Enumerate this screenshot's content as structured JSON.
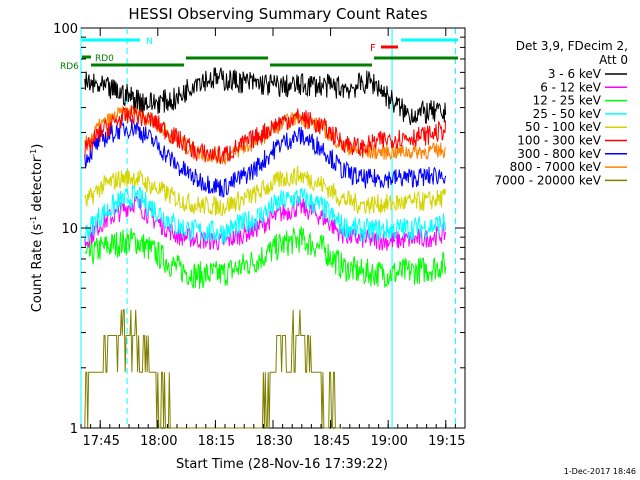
{
  "chart_data": {
    "type": "line",
    "title": "HESSI Observing Summary Count Rates",
    "xlabel": "Start Time (28-Nov-16 17:39:22)",
    "ylabel_main": "Count Rate (s",
    "ylabel_sup1": "-1",
    "ylabel_mid": " detector",
    "ylabel_sup2": "-1",
    "ylabel_end": ")",
    "yscale": "log",
    "ylim": [
      1,
      100
    ],
    "xlim_minutes": [
      -5,
      95
    ],
    "x_ticks": [
      {
        "label": "17:45",
        "minutes": 0
      },
      {
        "label": "18:00",
        "minutes": 15
      },
      {
        "label": "18:15",
        "minutes": 30
      },
      {
        "label": "18:30",
        "minutes": 45
      },
      {
        "label": "18:45",
        "minutes": 60
      },
      {
        "label": "19:00",
        "minutes": 75
      },
      {
        "label": "19:15",
        "minutes": 90
      }
    ],
    "y_ticks": [
      {
        "label": "1",
        "value": 1
      },
      {
        "label": "10",
        "value": 10
      },
      {
        "label": "100",
        "value": 100
      }
    ],
    "legend_header": [
      "Det 3,9, FDecim 2,",
      "Att 0"
    ],
    "series": [
      {
        "name": "3 - 6 keV",
        "color": "#000000",
        "points": [
          [
            -4,
            53
          ],
          [
            3,
            49
          ],
          [
            7,
            46
          ],
          [
            13,
            42
          ],
          [
            20,
            44
          ],
          [
            25,
            55
          ],
          [
            30,
            56
          ],
          [
            40,
            53
          ],
          [
            48,
            51
          ],
          [
            55,
            52
          ],
          [
            65,
            50
          ],
          [
            70,
            54
          ],
          [
            72,
            52
          ],
          [
            76,
            43
          ],
          [
            80,
            37
          ],
          [
            86,
            38
          ],
          [
            90,
            37
          ]
        ]
      },
      {
        "name": "6 - 12 keV",
        "color": "#ff00ff",
        "points": [
          [
            -4,
            8.4
          ],
          [
            0,
            10.5
          ],
          [
            5,
            12
          ],
          [
            9,
            13.5
          ],
          [
            14,
            11
          ],
          [
            20,
            9.2
          ],
          [
            25,
            8.8
          ],
          [
            32,
            8.5
          ],
          [
            40,
            9.8
          ],
          [
            47,
            11.8
          ],
          [
            52,
            12.8
          ],
          [
            58,
            11.3
          ],
          [
            63,
            9.3
          ],
          [
            68,
            8.8
          ],
          [
            75,
            8.6
          ],
          [
            85,
            8.9
          ],
          [
            90,
            9.4
          ]
        ]
      },
      {
        "name": "12 - 25 keV",
        "color": "#00ff00",
        "points": [
          [
            -4,
            7.1
          ],
          [
            0,
            7.9
          ],
          [
            5,
            8.4
          ],
          [
            9,
            8.7
          ],
          [
            14,
            7.6
          ],
          [
            20,
            6.3
          ],
          [
            25,
            5.8
          ],
          [
            32,
            5.9
          ],
          [
            40,
            6.8
          ],
          [
            47,
            8.2
          ],
          [
            52,
            8.8
          ],
          [
            58,
            7.9
          ],
          [
            63,
            6.4
          ],
          [
            68,
            6.0
          ],
          [
            75,
            5.9
          ],
          [
            85,
            6.2
          ],
          [
            90,
            6.6
          ]
        ]
      },
      {
        "name": "25 - 50 keV",
        "color": "#00ffff",
        "points": [
          [
            -4,
            9.3
          ],
          [
            0,
            11.5
          ],
          [
            5,
            13.5
          ],
          [
            9,
            14.5
          ],
          [
            14,
            12.5
          ],
          [
            20,
            10.2
          ],
          [
            25,
            9.6
          ],
          [
            32,
            9.5
          ],
          [
            40,
            11
          ],
          [
            47,
            13.5
          ],
          [
            52,
            14.3
          ],
          [
            58,
            12.6
          ],
          [
            63,
            10.2
          ],
          [
            68,
            9.7
          ],
          [
            75,
            9.8
          ],
          [
            85,
            10.1
          ],
          [
            90,
            10.6
          ]
        ]
      },
      {
        "name": "50 - 100 keV",
        "color": "#d4d400",
        "points": [
          [
            -4,
            13.2
          ],
          [
            0,
            16
          ],
          [
            5,
            17.6
          ],
          [
            9,
            18
          ],
          [
            14,
            16
          ],
          [
            20,
            14
          ],
          [
            25,
            13
          ],
          [
            32,
            12.8
          ],
          [
            40,
            14.6
          ],
          [
            47,
            17.5
          ],
          [
            52,
            18.4
          ],
          [
            58,
            16.4
          ],
          [
            63,
            14
          ],
          [
            68,
            13.1
          ],
          [
            75,
            13.2
          ],
          [
            85,
            13.6
          ],
          [
            90,
            14.2
          ]
        ]
      },
      {
        "name": "100 - 300 keV",
        "color": "#ff0000",
        "points": [
          [
            -4,
            24
          ],
          [
            0,
            30
          ],
          [
            5,
            35
          ],
          [
            9,
            37
          ],
          [
            14,
            34
          ],
          [
            20,
            28
          ],
          [
            25,
            24
          ],
          [
            32,
            23
          ],
          [
            40,
            28
          ],
          [
            47,
            34
          ],
          [
            52,
            36
          ],
          [
            58,
            32
          ],
          [
            63,
            27
          ],
          [
            68,
            25
          ],
          [
            72,
            27
          ],
          [
            76,
            28
          ],
          [
            85,
            29
          ],
          [
            90,
            31
          ]
        ]
      },
      {
        "name": "300 - 800 keV",
        "color": "#0000ff",
        "points": [
          [
            -4,
            22
          ],
          [
            0,
            27.5
          ],
          [
            5,
            31
          ],
          [
            9,
            32
          ],
          [
            14,
            27
          ],
          [
            20,
            20.5
          ],
          [
            25,
            17.5
          ],
          [
            32,
            15.8
          ],
          [
            40,
            19.5
          ],
          [
            47,
            26.5
          ],
          [
            52,
            29
          ],
          [
            58,
            25
          ],
          [
            63,
            19.5
          ],
          [
            68,
            17.6
          ],
          [
            75,
            17.7
          ],
          [
            85,
            18
          ],
          [
            90,
            18.6
          ]
        ]
      },
      {
        "name": "800 - 7000 keV",
        "color": "#ff8000",
        "points": [
          [
            -4,
            26
          ],
          [
            0,
            32.5
          ],
          [
            5,
            37
          ],
          [
            9,
            38.5
          ],
          [
            14,
            34
          ],
          [
            20,
            27.5
          ],
          [
            25,
            24
          ],
          [
            32,
            22.5
          ],
          [
            40,
            26.5
          ],
          [
            47,
            33
          ],
          [
            52,
            36
          ],
          [
            58,
            31.5
          ],
          [
            63,
            26
          ],
          [
            68,
            24
          ],
          [
            75,
            24
          ],
          [
            85,
            24.2
          ],
          [
            90,
            24.6
          ]
        ]
      },
      {
        "name": "7000 - 20000 keV",
        "color": "#808000",
        "points": [
          [
            -4,
            1.6
          ],
          [
            0,
            1.9
          ],
          [
            3,
            2.6
          ],
          [
            6,
            3.1
          ],
          [
            9,
            2.8
          ],
          [
            12,
            2.2
          ],
          [
            15,
            1.5
          ],
          [
            18,
            1.1
          ],
          [
            23,
            1
          ],
          [
            40,
            1
          ],
          [
            45,
            1.8
          ],
          [
            48,
            2.6
          ],
          [
            51,
            2.9
          ],
          [
            54,
            2.4
          ],
          [
            58,
            1.6
          ],
          [
            60,
            1.2
          ],
          [
            63,
            1
          ]
        ]
      }
    ],
    "attenuator_lines": [
      {
        "label": "N",
        "color": "#00ffff"
      },
      {
        "label": "RD0",
        "color": "#008000"
      },
      {
        "label": "RD6",
        "color": "#008000"
      },
      {
        "label": "F",
        "color": "#ff0000"
      }
    ],
    "timestamp": "1-Dec-2017 18:46"
  }
}
